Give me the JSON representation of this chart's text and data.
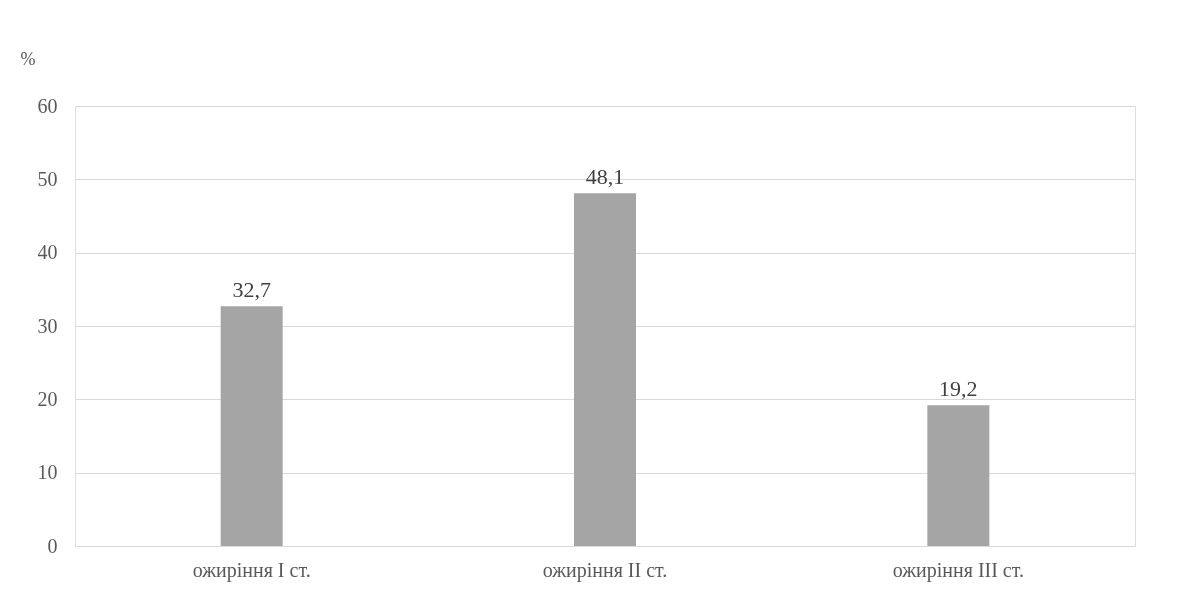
{
  "chart_data": {
    "type": "bar",
    "ylabel": "%",
    "categories": [
      "ожиріння I ст.",
      "ожиріння II ст.",
      "ожиріння III ст."
    ],
    "values": [
      32.7,
      48.1,
      19.2
    ],
    "value_labels": [
      "32,7",
      "48,1",
      "19,2"
    ],
    "color": "#a5a5a5",
    "ylim": [
      0,
      60
    ],
    "yticks": [
      0,
      10,
      20,
      30,
      40,
      50,
      60
    ],
    "grid": "y"
  }
}
